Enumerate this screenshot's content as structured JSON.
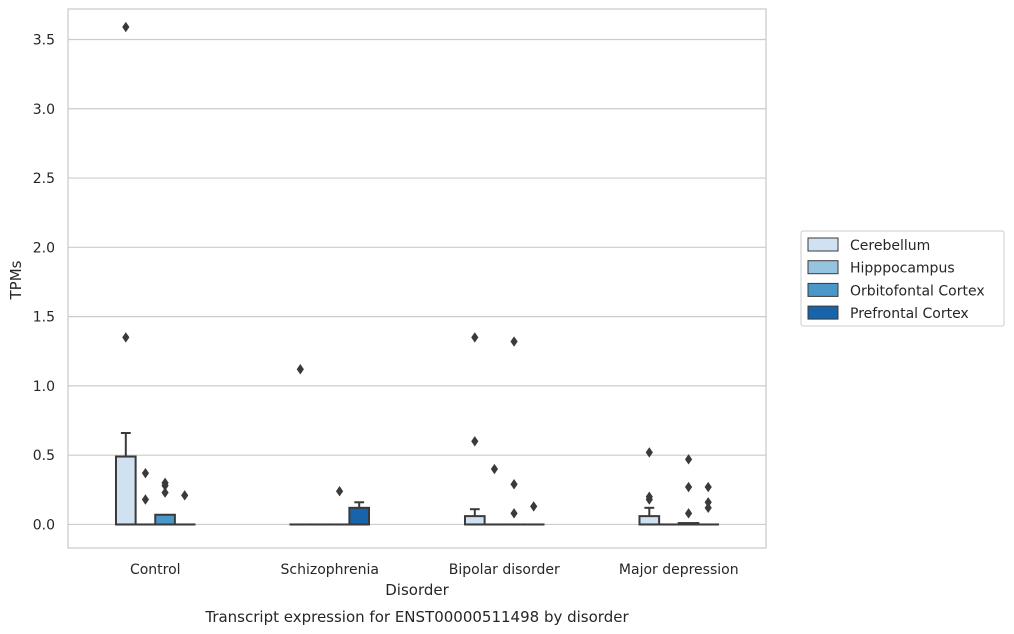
{
  "chart_data": {
    "type": "box",
    "title": "Transcript expression for ENST00000511498 by disorder",
    "xlabel": "Disorder",
    "ylabel": "TPMs",
    "categories": [
      "Control",
      "Schizophrenia",
      "Bipolar disorder",
      "Major depression"
    ],
    "ylim": [
      -0.17,
      3.72
    ],
    "yticks": [
      0.0,
      0.5,
      1.0,
      1.5,
      2.0,
      2.5,
      3.0,
      3.5
    ],
    "ytick_labels": [
      "0.0",
      "0.5",
      "1.0",
      "1.5",
      "2.0",
      "2.5",
      "3.0",
      "3.5"
    ],
    "grid": true,
    "legend_position": "right",
    "series": [
      {
        "name": "Cerebellum",
        "color": "#d0e1f2",
        "boxes": [
          {
            "q1": 0.0,
            "median": 0.0,
            "q3": 0.49,
            "whisker_low": 0.0,
            "whisker_high": 0.66,
            "outliers": [
              1.35,
              3.59
            ]
          },
          {
            "q1": 0.0,
            "median": 0.0,
            "q3": 0.0,
            "whisker_low": 0.0,
            "whisker_high": 0.0,
            "outliers": [
              1.12
            ]
          },
          {
            "q1": 0.0,
            "median": 0.0,
            "q3": 0.06,
            "whisker_low": 0.0,
            "whisker_high": 0.11,
            "outliers": [
              0.6,
              1.35
            ]
          },
          {
            "q1": 0.0,
            "median": 0.0,
            "q3": 0.06,
            "whisker_low": 0.0,
            "whisker_high": 0.12,
            "outliers": [
              0.18,
              0.2,
              0.52
            ]
          }
        ]
      },
      {
        "name": "Hipppocampus",
        "color": "#94c4df",
        "boxes": [
          {
            "q1": 0.0,
            "median": 0.0,
            "q3": 0.0,
            "whisker_low": 0.0,
            "whisker_high": 0.0,
            "outliers": [
              0.18,
              0.37
            ]
          },
          {
            "q1": 0.0,
            "median": 0.0,
            "q3": 0.0,
            "whisker_low": 0.0,
            "whisker_high": 0.0,
            "outliers": []
          },
          {
            "q1": 0.0,
            "median": 0.0,
            "q3": 0.0,
            "whisker_low": 0.0,
            "whisker_high": 0.0,
            "outliers": [
              0.4
            ]
          },
          {
            "q1": 0.0,
            "median": 0.0,
            "q3": 0.0,
            "whisker_low": 0.0,
            "whisker_high": 0.0,
            "outliers": []
          }
        ]
      },
      {
        "name": "Orbitofontal Cortex",
        "color": "#4a98c9",
        "boxes": [
          {
            "q1": 0.0,
            "median": 0.0,
            "q3": 0.07,
            "whisker_low": 0.0,
            "whisker_high": 0.07,
            "outliers": [
              0.23,
              0.28,
              0.3
            ]
          },
          {
            "q1": 0.0,
            "median": 0.0,
            "q3": 0.0,
            "whisker_low": 0.0,
            "whisker_high": 0.0,
            "outliers": [
              0.24
            ]
          },
          {
            "q1": 0.0,
            "median": 0.0,
            "q3": 0.0,
            "whisker_low": 0.0,
            "whisker_high": 0.0,
            "outliers": [
              0.08,
              0.29,
              1.32
            ]
          },
          {
            "q1": 0.0,
            "median": 0.0,
            "q3": 0.01,
            "whisker_low": 0.0,
            "whisker_high": 0.01,
            "outliers": [
              0.08,
              0.27,
              0.47
            ]
          }
        ]
      },
      {
        "name": "Prefrontal Cortex",
        "color": "#1764ab",
        "boxes": [
          {
            "q1": 0.0,
            "median": 0.0,
            "q3": 0.0,
            "whisker_low": 0.0,
            "whisker_high": 0.0,
            "outliers": [
              0.21
            ]
          },
          {
            "q1": 0.0,
            "median": 0.0,
            "q3": 0.12,
            "whisker_low": 0.0,
            "whisker_high": 0.16,
            "outliers": []
          },
          {
            "q1": 0.0,
            "median": 0.0,
            "q3": 0.0,
            "whisker_low": 0.0,
            "whisker_high": 0.0,
            "outliers": [
              0.13
            ]
          },
          {
            "q1": 0.0,
            "median": 0.0,
            "q3": 0.0,
            "whisker_low": 0.0,
            "whisker_high": 0.0,
            "outliers": [
              0.12,
              0.16,
              0.27
            ]
          }
        ]
      }
    ]
  },
  "colors": {
    "grid": "#cccccc",
    "frame": "#cccccc",
    "box_edge": "#3a3a3a",
    "outlier": "#3a3a3a"
  }
}
